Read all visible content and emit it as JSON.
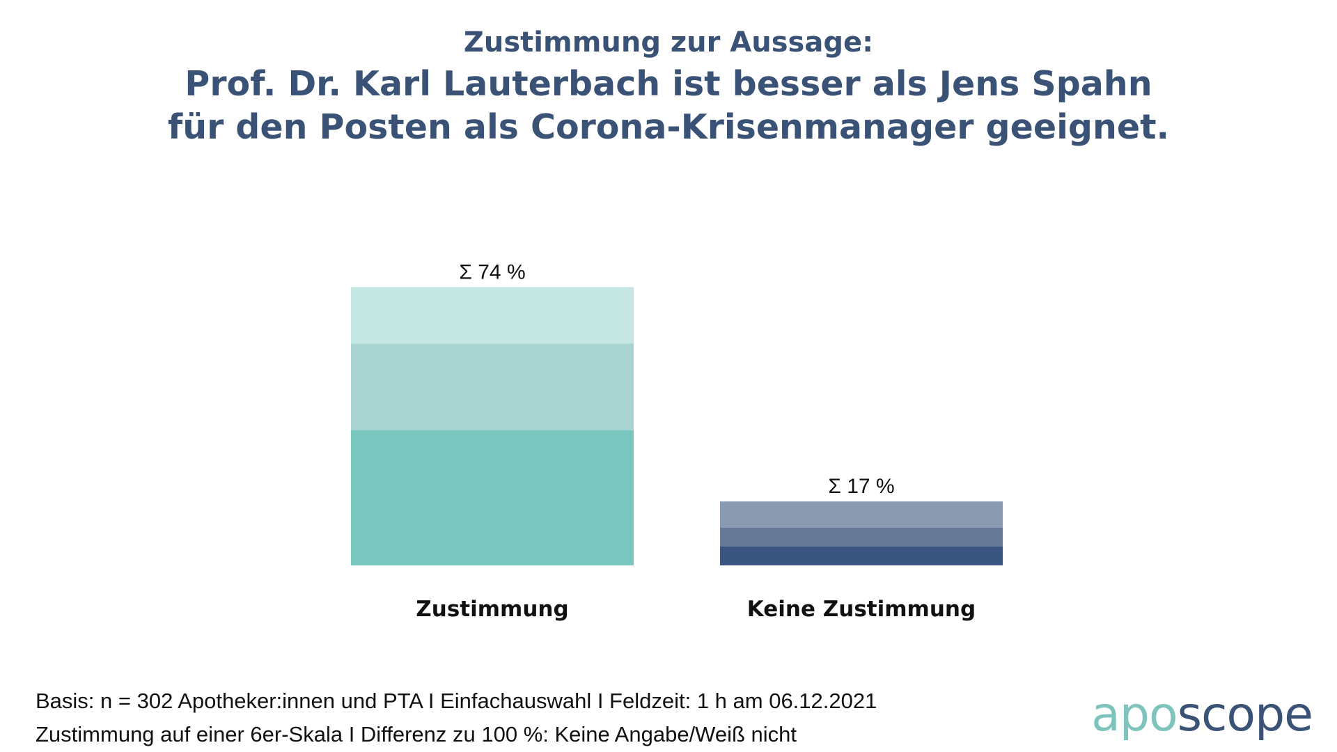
{
  "title": {
    "subtitle": "Zustimmung zur Aussage:",
    "line1": "Prof. Dr. Karl Lauterbach ist besser als Jens Spahn",
    "line2": "für den Posten als Corona-Krisenmanager geeignet."
  },
  "chart_data": {
    "type": "bar",
    "stacked": true,
    "categories": [
      "Zustimmung",
      "Keine Zustimmung"
    ],
    "totals_labels": [
      "Σ 74  %",
      "Σ 17  %"
    ],
    "totals": [
      74,
      17
    ],
    "series": [
      {
        "values": [
          36,
          5
        ],
        "colors": [
          "#78c6bd",
          "#3a5580"
        ]
      },
      {
        "values": [
          23,
          5
        ],
        "colors": [
          "#aad4d2",
          "#667896"
        ]
      },
      {
        "values": [
          15,
          7
        ],
        "colors": [
          "#c5e7e4",
          "#8a9ab0"
        ]
      }
    ],
    "ylim": [
      0,
      100
    ],
    "grid": false,
    "legend": "none"
  },
  "footnote": {
    "line1": "Basis: n = 302 Apotheker:innen und PTA I Einfachauswahl I Feldzeit: 1 h am 06.12.2021",
    "line2": "Zustimmung auf einer 6er-Skala I Differenz zu 100 %: Keine Angabe/Weiß nicht"
  },
  "logo": {
    "part1": "apo",
    "part2": "scope",
    "color1": "#7ec4bc",
    "color2": "#3a5275"
  }
}
